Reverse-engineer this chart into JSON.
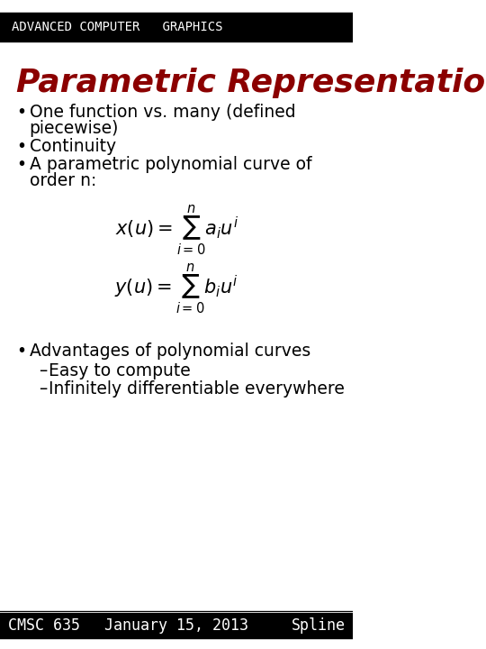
{
  "header_text": "ADVANCED COMPUTER   GRAPHICS",
  "header_bg": "#000000",
  "header_fg": "#ffffff",
  "title_text": "Parametric Representation",
  "title_color": "#8B0000",
  "slide_bg": "#ffffff",
  "bullet_color": "#000000",
  "bullet_font_size": 13.5,
  "header_font_size": 10,
  "title_font_size": 26,
  "footer_bg": "#000000",
  "footer_fg": "#ffffff",
  "footer_left": "CMSC 635",
  "footer_center": "January 15, 2013",
  "footer_right": "Spline",
  "footer_font_size": 12,
  "line_color": "#000000",
  "eq1": "x(u) = \\sum_{i=0}^{n} a_i u^i",
  "eq2": "y(u) = \\sum_{i=0}^{n} b_i u^i"
}
